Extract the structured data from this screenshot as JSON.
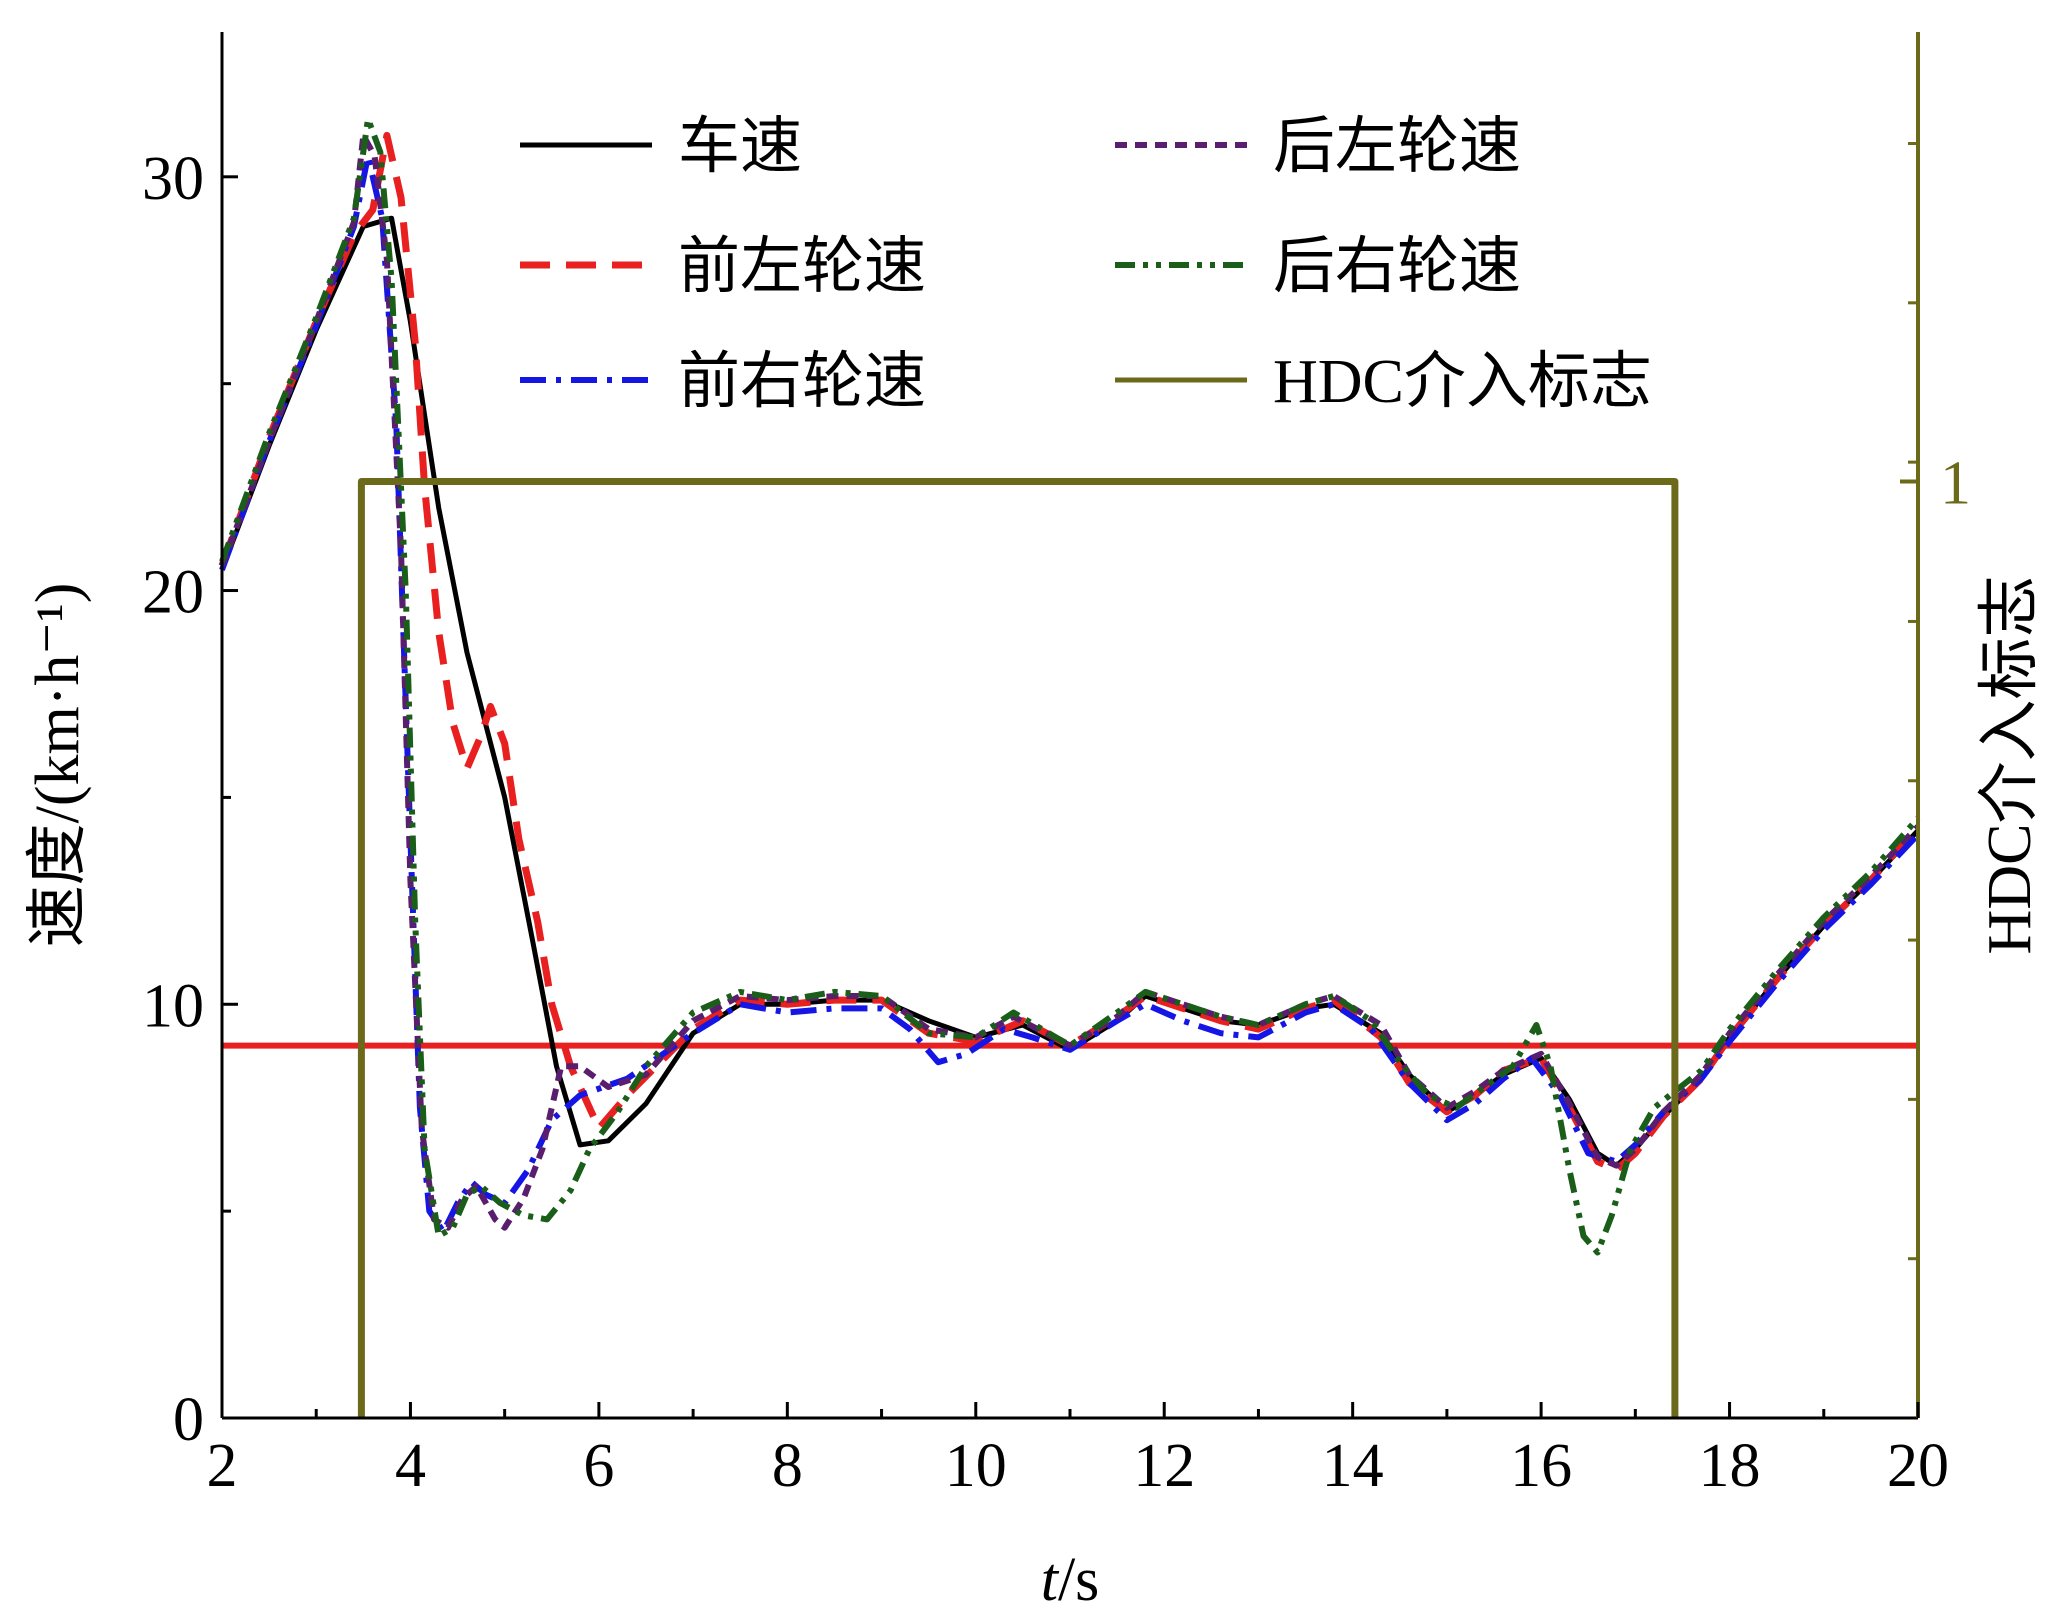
{
  "chart_data": {
    "type": "line",
    "xlabel": {
      "italic": "t",
      "rest": "/s"
    },
    "ylabel_left": "速度/(km·h⁻¹)",
    "ylabel_right": "HDC介入标志",
    "xlim": [
      2,
      20
    ],
    "ylim": [
      0,
      33.5
    ],
    "y2lim": [
      0,
      1.48
    ],
    "x_ticks": [
      2,
      4,
      6,
      8,
      10,
      12,
      14,
      16,
      18,
      20
    ],
    "y_ticks": [
      0,
      10,
      20,
      30
    ],
    "y2_ticks": [
      1
    ],
    "grid": false,
    "legend_position": "top",
    "reference_line": {
      "y": 9,
      "color": "#e82020"
    },
    "series": [
      {
        "name": "车速",
        "color": "#000000",
        "style": "solid",
        "axis": "left",
        "points": [
          [
            2,
            20.5
          ],
          [
            2.5,
            23.5
          ],
          [
            3,
            26.3
          ],
          [
            3.5,
            28.8
          ],
          [
            3.8,
            29
          ],
          [
            4,
            26.5
          ],
          [
            4.3,
            22
          ],
          [
            4.6,
            18.5
          ],
          [
            5,
            15
          ],
          [
            5.3,
            11.5
          ],
          [
            5.55,
            8.5
          ],
          [
            5.8,
            6.6
          ],
          [
            6.1,
            6.7
          ],
          [
            6.5,
            7.6
          ],
          [
            7,
            9.3
          ],
          [
            7.5,
            10
          ],
          [
            8,
            10
          ],
          [
            8.5,
            10.1
          ],
          [
            9,
            10.1
          ],
          [
            9.5,
            9.6
          ],
          [
            10,
            9.2
          ],
          [
            10.5,
            9.5
          ],
          [
            11,
            8.9
          ],
          [
            11.5,
            9.6
          ],
          [
            11.8,
            10.2
          ],
          [
            12.2,
            9.9
          ],
          [
            12.6,
            9.6
          ],
          [
            13,
            9.5
          ],
          [
            13.5,
            9.9
          ],
          [
            13.8,
            10
          ],
          [
            14.3,
            9.3
          ],
          [
            14.6,
            8.3
          ],
          [
            15,
            7.4
          ],
          [
            15.3,
            7.8
          ],
          [
            15.6,
            8.3
          ],
          [
            16,
            8.7
          ],
          [
            16.3,
            7.7
          ],
          [
            16.6,
            6.4
          ],
          [
            16.8,
            6.1
          ],
          [
            17,
            6.5
          ],
          [
            17.3,
            7.3
          ],
          [
            17.7,
            8.2
          ],
          [
            18,
            9.2
          ],
          [
            18.5,
            10.6
          ],
          [
            19,
            11.9
          ],
          [
            19.5,
            13
          ],
          [
            20,
            14.2
          ]
        ]
      },
      {
        "name": "前左轮速",
        "color": "#e82020",
        "style": "dashed",
        "axis": "left",
        "points": [
          [
            2,
            20.6
          ],
          [
            2.5,
            23.7
          ],
          [
            3,
            26.5
          ],
          [
            3.4,
            28.6
          ],
          [
            3.6,
            29.2
          ],
          [
            3.75,
            31
          ],
          [
            3.9,
            29.5
          ],
          [
            4.05,
            26
          ],
          [
            4.15,
            22.5
          ],
          [
            4.3,
            19
          ],
          [
            4.45,
            16.8
          ],
          [
            4.6,
            15.7
          ],
          [
            4.75,
            16.5
          ],
          [
            4.85,
            17.2
          ],
          [
            5,
            16.3
          ],
          [
            5.15,
            14
          ],
          [
            5.35,
            12
          ],
          [
            5.5,
            10
          ],
          [
            5.7,
            8.5
          ],
          [
            6,
            7
          ],
          [
            6.3,
            7.8
          ],
          [
            7,
            9.4
          ],
          [
            7.5,
            10.1
          ],
          [
            8,
            10
          ],
          [
            8.5,
            10.1
          ],
          [
            9,
            10.1
          ],
          [
            9.5,
            9.3
          ],
          [
            10,
            9.1
          ],
          [
            10.5,
            9.6
          ],
          [
            11,
            9
          ],
          [
            11.5,
            9.7
          ],
          [
            11.8,
            10.2
          ],
          [
            12.2,
            9.9
          ],
          [
            12.6,
            9.6
          ],
          [
            13,
            9.4
          ],
          [
            13.5,
            9.9
          ],
          [
            13.8,
            10.1
          ],
          [
            14.3,
            9.2
          ],
          [
            14.6,
            8.1
          ],
          [
            15,
            7.4
          ],
          [
            15.3,
            7.8
          ],
          [
            15.6,
            8.4
          ],
          [
            16,
            8.7
          ],
          [
            16.3,
            7.5
          ],
          [
            16.6,
            6.2
          ],
          [
            16.8,
            6.0
          ],
          [
            17,
            6.4
          ],
          [
            17.3,
            7.3
          ],
          [
            17.7,
            8.2
          ],
          [
            18,
            9.2
          ],
          [
            18.5,
            10.6
          ],
          [
            19,
            11.9
          ],
          [
            19.5,
            13
          ],
          [
            20,
            14.3
          ]
        ]
      },
      {
        "name": "前右轮速",
        "color": "#1515e6",
        "style": "dashdot",
        "axis": "left",
        "points": [
          [
            2,
            20.5
          ],
          [
            2.5,
            23.6
          ],
          [
            3,
            26.4
          ],
          [
            3.4,
            28.8
          ],
          [
            3.55,
            30.5
          ],
          [
            3.7,
            29
          ],
          [
            3.85,
            24
          ],
          [
            4,
            14
          ],
          [
            4.1,
            7.5
          ],
          [
            4.2,
            5
          ],
          [
            4.35,
            4.5
          ],
          [
            4.5,
            5.2
          ],
          [
            4.65,
            5.7
          ],
          [
            4.8,
            5.4
          ],
          [
            5,
            5.2
          ],
          [
            5.25,
            6
          ],
          [
            5.5,
            7.2
          ],
          [
            5.8,
            7.8
          ],
          [
            6.3,
            8.2
          ],
          [
            7,
            9.3
          ],
          [
            7.5,
            10
          ],
          [
            8,
            9.8
          ],
          [
            8.5,
            9.9
          ],
          [
            9,
            9.9
          ],
          [
            9.3,
            9.4
          ],
          [
            9.6,
            8.6
          ],
          [
            9.9,
            8.8
          ],
          [
            10.3,
            9.4
          ],
          [
            10.6,
            9.2
          ],
          [
            11,
            8.9
          ],
          [
            11.5,
            9.6
          ],
          [
            11.8,
            10
          ],
          [
            12.2,
            9.6
          ],
          [
            12.6,
            9.3
          ],
          [
            13,
            9.2
          ],
          [
            13.5,
            9.8
          ],
          [
            13.8,
            10
          ],
          [
            14.2,
            9.4
          ],
          [
            14.6,
            8.1
          ],
          [
            15,
            7.2
          ],
          [
            15.3,
            7.6
          ],
          [
            15.6,
            8.2
          ],
          [
            15.9,
            8.7
          ],
          [
            16.2,
            7.8
          ],
          [
            16.5,
            6.4
          ],
          [
            16.8,
            6.2
          ],
          [
            17,
            6.6
          ],
          [
            17.3,
            7.4
          ],
          [
            17.7,
            8.2
          ],
          [
            18,
            9.1
          ],
          [
            18.5,
            10.5
          ],
          [
            19,
            11.8
          ],
          [
            19.5,
            12.9
          ],
          [
            20,
            14.1
          ]
        ]
      },
      {
        "name": "后左轮速",
        "color": "#5a1e6e",
        "style": "shortdash",
        "axis": "left",
        "points": [
          [
            2,
            20.6
          ],
          [
            2.5,
            23.6
          ],
          [
            3,
            26.5
          ],
          [
            3.4,
            28.9
          ],
          [
            3.5,
            31
          ],
          [
            3.62,
            30.5
          ],
          [
            3.75,
            28
          ],
          [
            3.9,
            21
          ],
          [
            4,
            13
          ],
          [
            4.12,
            7
          ],
          [
            4.25,
            4.8
          ],
          [
            4.4,
            4.6
          ],
          [
            4.55,
            5.3
          ],
          [
            4.7,
            5.6
          ],
          [
            4.9,
            4.8
          ],
          [
            5,
            4.6
          ],
          [
            5.2,
            5.3
          ],
          [
            5.4,
            6.5
          ],
          [
            5.6,
            8.5
          ],
          [
            5.8,
            8.5
          ],
          [
            6.1,
            8
          ],
          [
            6.5,
            8.3
          ],
          [
            7,
            9.6
          ],
          [
            7.5,
            10.2
          ],
          [
            8,
            10.1
          ],
          [
            8.5,
            10.2
          ],
          [
            9,
            10.2
          ],
          [
            9.5,
            9.4
          ],
          [
            10,
            9.2
          ],
          [
            10.4,
            9.7
          ],
          [
            11,
            9
          ],
          [
            11.5,
            9.7
          ],
          [
            11.8,
            10.3
          ],
          [
            12.2,
            10
          ],
          [
            12.6,
            9.7
          ],
          [
            13,
            9.5
          ],
          [
            13.5,
            10
          ],
          [
            13.8,
            10.2
          ],
          [
            14.3,
            9.5
          ],
          [
            14.6,
            8.3
          ],
          [
            15,
            7.5
          ],
          [
            15.3,
            7.9
          ],
          [
            15.6,
            8.4
          ],
          [
            16,
            8.8
          ],
          [
            16.3,
            7.6
          ],
          [
            16.6,
            6.3
          ],
          [
            16.8,
            6.1
          ],
          [
            17,
            6.5
          ],
          [
            17.3,
            7.4
          ],
          [
            17.7,
            8.3
          ],
          [
            18,
            9.3
          ],
          [
            18.5,
            10.7
          ],
          [
            19,
            12
          ],
          [
            19.5,
            13.1
          ],
          [
            20,
            14.3
          ]
        ]
      },
      {
        "name": "后右轮速",
        "color": "#1a5e1a",
        "style": "dashdotdot",
        "axis": "left",
        "points": [
          [
            2,
            20.7
          ],
          [
            2.5,
            23.8
          ],
          [
            3,
            26.6
          ],
          [
            3.4,
            29
          ],
          [
            3.55,
            31.4
          ],
          [
            3.68,
            30.6
          ],
          [
            3.8,
            27.5
          ],
          [
            3.95,
            20
          ],
          [
            4.05,
            12
          ],
          [
            4.15,
            6.5
          ],
          [
            4.3,
            4.4
          ],
          [
            4.45,
            4.6
          ],
          [
            4.6,
            5.4
          ],
          [
            4.75,
            5.6
          ],
          [
            4.95,
            5.2
          ],
          [
            5.2,
            4.9
          ],
          [
            5.45,
            4.8
          ],
          [
            5.7,
            5.5
          ],
          [
            5.9,
            6.5
          ],
          [
            6.2,
            7.4
          ],
          [
            6.5,
            8.5
          ],
          [
            7,
            9.8
          ],
          [
            7.5,
            10.3
          ],
          [
            8,
            10.1
          ],
          [
            8.5,
            10.3
          ],
          [
            9,
            10.2
          ],
          [
            9.5,
            9.3
          ],
          [
            10,
            9.2
          ],
          [
            10.4,
            9.8
          ],
          [
            11,
            9
          ],
          [
            11.5,
            9.8
          ],
          [
            11.8,
            10.3
          ],
          [
            12.2,
            10
          ],
          [
            12.6,
            9.7
          ],
          [
            13,
            9.5
          ],
          [
            13.5,
            10
          ],
          [
            13.8,
            10.2
          ],
          [
            14.2,
            9.6
          ],
          [
            14.5,
            8.6
          ],
          [
            14.8,
            7.8
          ],
          [
            15.1,
            7.5
          ],
          [
            15.4,
            8
          ],
          [
            15.7,
            8.5
          ],
          [
            15.95,
            9.5
          ],
          [
            16.1,
            8.5
          ],
          [
            16.3,
            6
          ],
          [
            16.45,
            4.4
          ],
          [
            16.6,
            4
          ],
          [
            16.75,
            4.9
          ],
          [
            16.95,
            6.5
          ],
          [
            17.2,
            7.5
          ],
          [
            17.7,
            8.4
          ],
          [
            18,
            9.4
          ],
          [
            18.5,
            10.8
          ],
          [
            19,
            12.1
          ],
          [
            19.5,
            13.2
          ],
          [
            20,
            14.5
          ]
        ]
      },
      {
        "name": "HDC介入标志",
        "color": "#6b6a1a",
        "style": "solid",
        "axis": "right",
        "points": [
          [
            3.48,
            0
          ],
          [
            3.48,
            1
          ],
          [
            17.42,
            1
          ],
          [
            17.42,
            0
          ]
        ]
      }
    ]
  }
}
